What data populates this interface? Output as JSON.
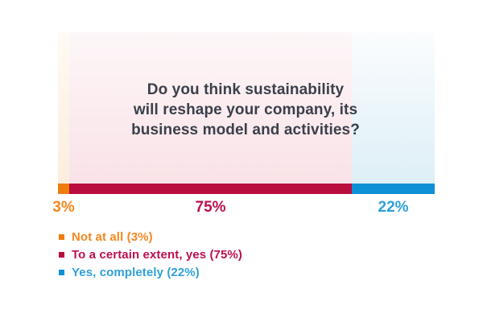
{
  "chart_data": {
    "type": "bar",
    "orientation": "horizontal-stacked",
    "title": "Do you think sustainability will reshape your company, its business model and activities?",
    "title_lines": {
      "line1": "Do you think sustainability",
      "line2": "will reshape your company, its",
      "line3": "business model and activities?"
    },
    "title_color": "#3B404B",
    "unit": "%",
    "categories": [
      "Not at all",
      "To a certain extent, yes",
      "Yes, completely"
    ],
    "values": [
      3,
      75,
      22
    ],
    "legend_position": "bottom-left",
    "segments": [
      {
        "label": "Not at all",
        "value": 3,
        "pct_label": "3%",
        "legend_label": "Not at all (3%)",
        "bar_color": "#EF7D0C",
        "text_color": "#F5871F",
        "bg_tint_top": "#FEFAF4",
        "bg_tint_bottom": "#FBEEDD"
      },
      {
        "label": "To a certain extent, yes",
        "value": 75,
        "pct_label": "75%",
        "legend_label": "To a certain extent, yes (75%)",
        "bar_color": "#B90D3D",
        "text_color": "#BE0F50",
        "bg_tint_top": "#FDF7F8",
        "bg_tint_bottom": "#F9E2E7"
      },
      {
        "label": "Yes, completely",
        "value": 22,
        "pct_label": "22%",
        "legend_label": "Yes, completely (22%)",
        "bar_color": "#0E90D7",
        "text_color": "#2EA0DB",
        "bg_tint_top": "#FBFDFE",
        "bg_tint_bottom": "#DDEFF6"
      }
    ]
  }
}
